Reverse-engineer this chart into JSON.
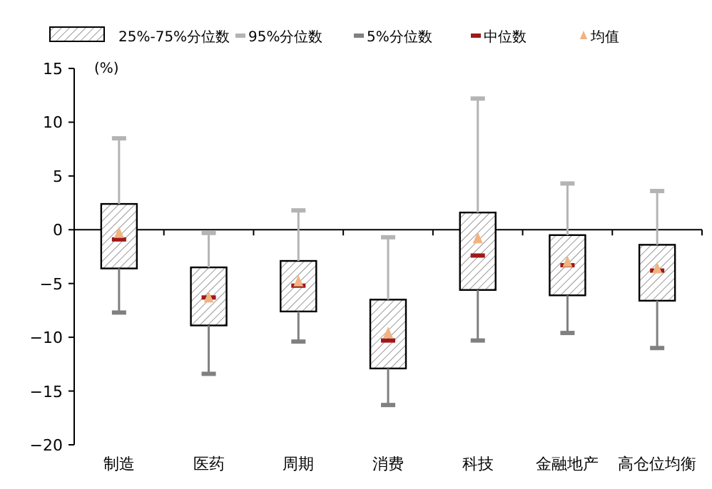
{
  "chart_data": {
    "type": "bar",
    "ylabel": "(%)",
    "legend": "top",
    "categories": [
      "制造",
      "医药",
      "周期",
      "消费",
      "科技",
      "金融地产",
      "高仓位均衡"
    ],
    "ylim": [
      -20,
      15
    ],
    "yticks": [
      -20,
      -15,
      -10,
      -5,
      0,
      5,
      10,
      15
    ],
    "series": [
      {
        "name": "25%-75%分位数",
        "color": "#000000",
        "base": [
          -3.6,
          -8.9,
          -7.6,
          -12.9,
          -5.6,
          -6.1,
          -6.6
        ],
        "values": [
          6.0,
          5.4,
          4.7,
          6.4,
          7.2,
          5.6,
          5.2
        ]
      },
      {
        "name": "95%分位数",
        "type": "scatter",
        "color": "#b4b4b4",
        "values": [
          8.5,
          -0.3,
          1.8,
          -0.7,
          12.2,
          4.3,
          3.6
        ]
      },
      {
        "name": "5%分位数",
        "type": "scatter",
        "color": "#808080",
        "values": [
          -7.7,
          -13.4,
          -10.4,
          -16.3,
          -10.3,
          -9.6,
          -11.0
        ]
      },
      {
        "name": "中位数",
        "type": "scatter",
        "color": "#a01818",
        "values": [
          -0.9,
          -6.3,
          -5.2,
          -10.3,
          -2.4,
          -3.3,
          -3.8
        ]
      },
      {
        "name": "均值",
        "type": "scatter",
        "marker": "triangle",
        "color": "#f0b482",
        "values": [
          -0.5,
          -6.5,
          -5.0,
          -9.8,
          -1.0,
          -3.2,
          -3.8
        ]
      }
    ]
  }
}
